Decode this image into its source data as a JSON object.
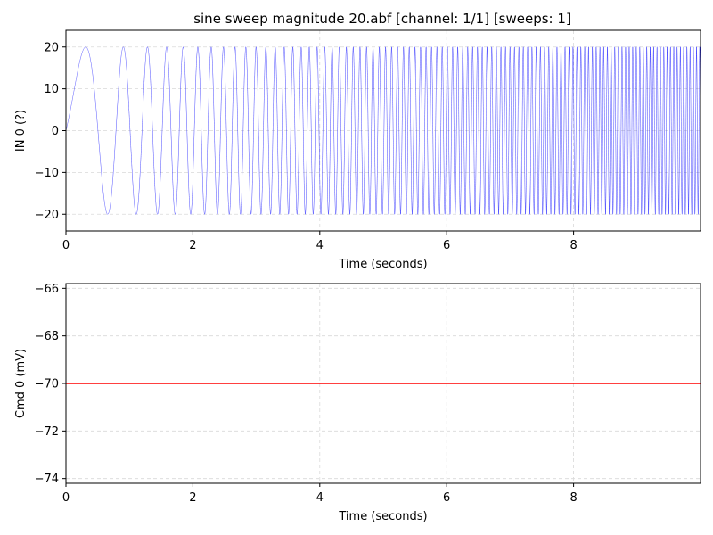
{
  "chart_data": [
    {
      "type": "line",
      "title": "sine sweep magnitude 20.abf [channel: 1/1] [sweeps: 1]",
      "xlabel": "Time (seconds)",
      "ylabel": "IN 0 (?)",
      "xlim": [
        0,
        10
      ],
      "ylim": [
        -24,
        24
      ],
      "xticks": [
        0,
        2,
        4,
        6,
        8
      ],
      "yticks": [
        -20,
        -10,
        0,
        10,
        20
      ],
      "grid": true,
      "color": "#0000ff",
      "series": [
        {
          "signal": "sine-sweep",
          "amplitude": 20,
          "start_frequency_hz": 0.5,
          "end_frequency_hz": 20,
          "duration_s": 10
        }
      ]
    },
    {
      "type": "line",
      "title": "",
      "xlabel": "Time (seconds)",
      "ylabel": "Cmd 0 (mV)",
      "xlim": [
        0,
        10
      ],
      "ylim": [
        -74.2,
        -65.8
      ],
      "xticks": [
        0,
        2,
        4,
        6,
        8
      ],
      "yticks": [
        -74,
        -72,
        -70,
        -68,
        -66
      ],
      "grid": true,
      "color": "#ff0000",
      "series": [
        {
          "x": [
            0,
            10
          ],
          "y": [
            -70,
            -70
          ]
        }
      ]
    }
  ]
}
